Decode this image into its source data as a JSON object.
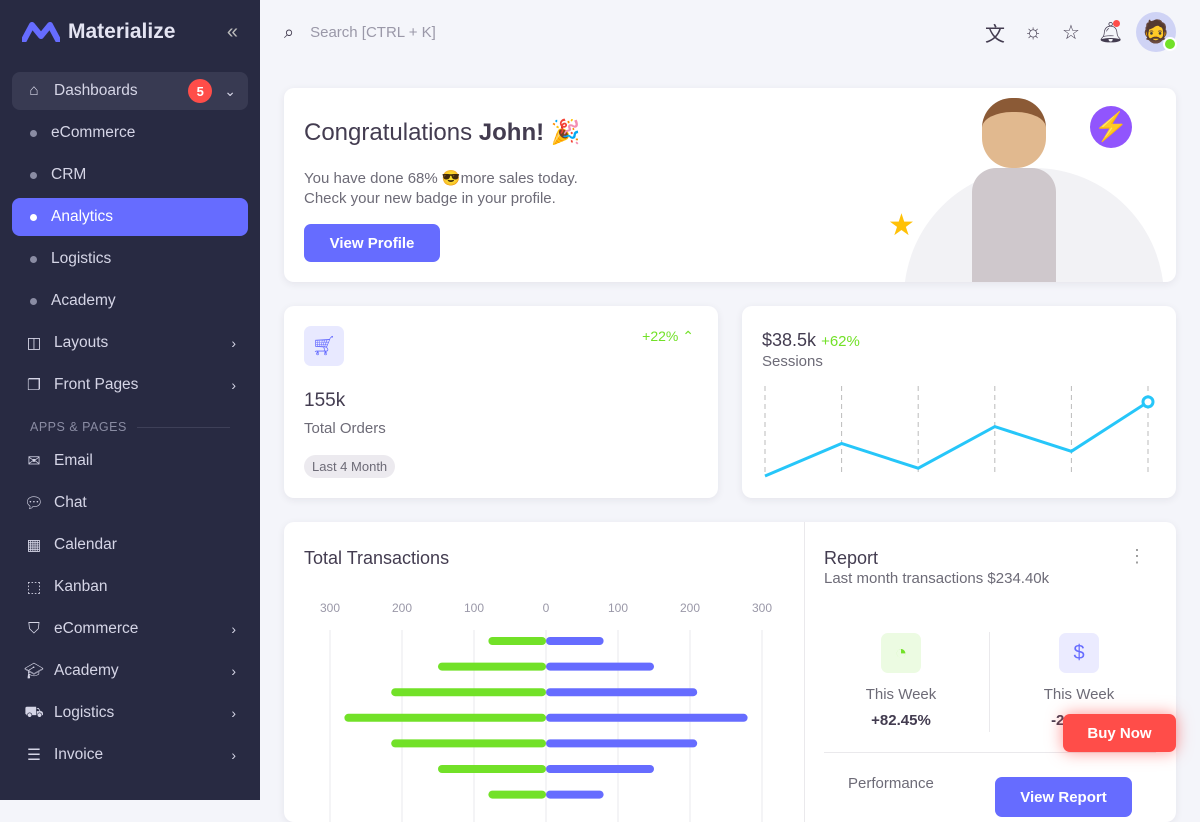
{
  "brand": {
    "name": "Materialize",
    "collapse_icon": "chevrons-left-icon"
  },
  "sidebar": {
    "dashboards": {
      "label": "Dashboards",
      "badge": "5",
      "children": [
        "eCommerce",
        "CRM",
        "Analytics",
        "Logistics",
        "Academy"
      ],
      "active": "Analytics"
    },
    "top_items": [
      {
        "label": "Layouts",
        "icon": "layout-icon"
      },
      {
        "label": "Front Pages",
        "icon": "files-icon"
      }
    ],
    "section": "APPS & PAGES",
    "apps": [
      {
        "label": "Email",
        "icon": "mail-icon",
        "chevron": false
      },
      {
        "label": "Chat",
        "icon": "chat-icon",
        "chevron": false
      },
      {
        "label": "Calendar",
        "icon": "calendar-icon",
        "chevron": false
      },
      {
        "label": "Kanban",
        "icon": "kanban-icon",
        "chevron": false
      },
      {
        "label": "eCommerce",
        "icon": "shopping-bag-icon",
        "chevron": true
      },
      {
        "label": "Academy",
        "icon": "graduation-cap-icon",
        "chevron": true
      },
      {
        "label": "Logistics",
        "icon": "truck-icon",
        "chevron": true
      },
      {
        "label": "Invoice",
        "icon": "invoice-icon",
        "chevron": true
      }
    ]
  },
  "topbar": {
    "search_placeholder": "Search [CTRL + K]"
  },
  "welcome": {
    "title_prefix": "Congratulations ",
    "title_name": "John!",
    "emoji": "🎉",
    "line1": "You have done 68% 😎more sales today.",
    "line2": "Check your new badge in your profile.",
    "button": "View Profile"
  },
  "orders": {
    "change": "+22%",
    "value": "155k",
    "label": "Total Orders",
    "chip": "Last 4 Month"
  },
  "sessions": {
    "value": "$38.5k",
    "change": "+62%",
    "label": "Sessions",
    "line": [
      0,
      25,
      6,
      38,
      19,
      57
    ]
  },
  "transactions": {
    "title": "Total Transactions",
    "chart_data": {
      "type": "bar",
      "orientation": "horizontal",
      "xlim": [
        -300,
        300
      ],
      "ticks": [
        "300",
        "200",
        "100",
        "0",
        "100",
        "200",
        "300"
      ],
      "grid": true,
      "series": [
        {
          "color": "#72e128",
          "values": [
            -80,
            -150,
            -215,
            -280,
            -215,
            -150,
            -80
          ]
        },
        {
          "color": "#666cff",
          "values": [
            80,
            150,
            210,
            280,
            210,
            150,
            80
          ]
        }
      ]
    }
  },
  "report": {
    "title": "Report",
    "subtitle": "Last month transactions $234.40k",
    "stats": [
      {
        "label": "This Week",
        "value": "+82.45%",
        "icon": "pie-chart-icon",
        "color": "#72e128"
      },
      {
        "label": "This Week",
        "value": "-24.86%",
        "icon": "dollar-circle-icon",
        "color": "#666cff"
      }
    ],
    "performance": "Performance",
    "button": "View Report"
  },
  "buy_now": "Buy Now",
  "colors": {
    "primary": "#666cff",
    "success": "#72e128",
    "error": "#ff4d49",
    "sidebar": "#282a42"
  }
}
